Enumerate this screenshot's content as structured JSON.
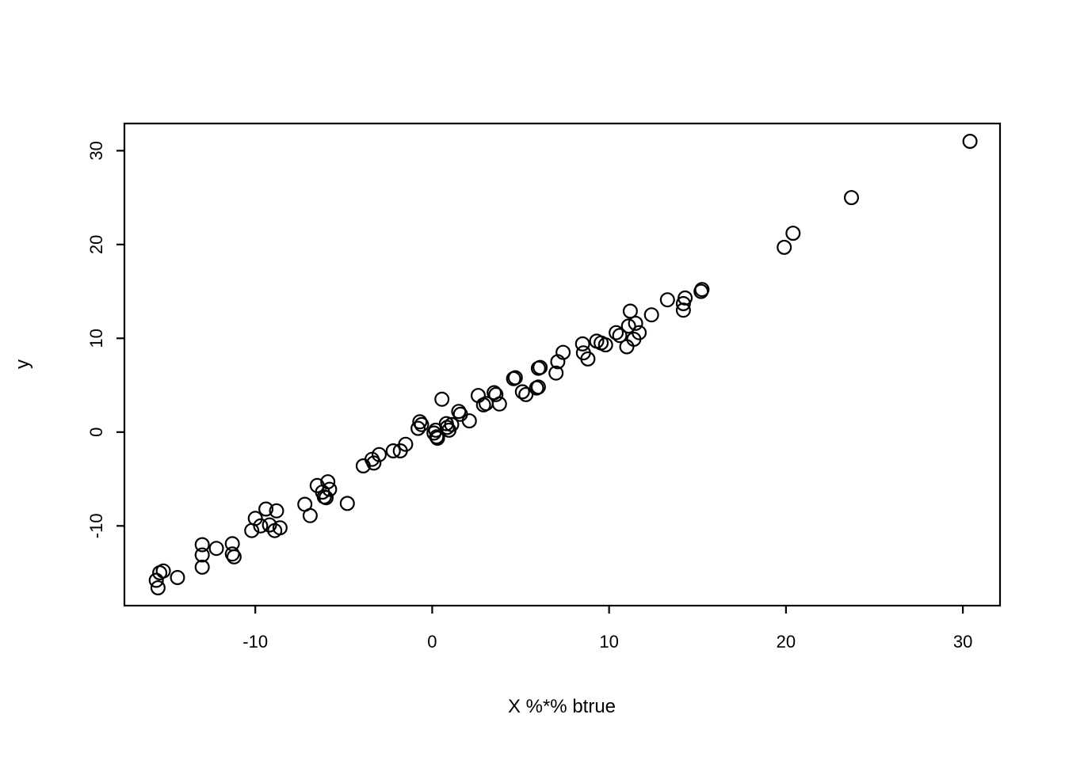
{
  "chart_data": {
    "type": "scatter",
    "title": "",
    "xlabel": "X %*% btrue",
    "ylabel": "y",
    "x_ticks": [
      -10,
      0,
      10,
      20,
      30
    ],
    "y_ticks": [
      -10,
      0,
      10,
      20,
      30
    ],
    "xlim": [
      -17.4,
      32.1
    ],
    "ylim": [
      -18.5,
      32.9
    ],
    "grid": false,
    "legend": null,
    "marker": "open-circle",
    "marker_color": "#000000",
    "background_color": "#ffffff",
    "points": [
      [
        -15.6,
        -15.8
      ],
      [
        -15.5,
        -16.6
      ],
      [
        -15.4,
        -15.0
      ],
      [
        -15.2,
        -14.8
      ],
      [
        -14.4,
        -15.5
      ],
      [
        -13.0,
        -12.0
      ],
      [
        -13.0,
        -13.1
      ],
      [
        -13.0,
        -14.4
      ],
      [
        -12.2,
        -12.4
      ],
      [
        -11.3,
        -11.9
      ],
      [
        -11.3,
        -13.0
      ],
      [
        -11.2,
        -13.3
      ],
      [
        -10.2,
        -10.5
      ],
      [
        -10.0,
        -9.2
      ],
      [
        -9.7,
        -10.0
      ],
      [
        -9.4,
        -8.2
      ],
      [
        -9.2,
        -9.9
      ],
      [
        -8.9,
        -10.5
      ],
      [
        -8.8,
        -8.4
      ],
      [
        -8.6,
        -10.2
      ],
      [
        -7.2,
        -7.7
      ],
      [
        -6.9,
        -8.9
      ],
      [
        -6.5,
        -5.7
      ],
      [
        -6.2,
        -6.4
      ],
      [
        -6.1,
        -6.9
      ],
      [
        -6.0,
        -7.0
      ],
      [
        -5.9,
        -5.3
      ],
      [
        -5.8,
        -6.1
      ],
      [
        -4.8,
        -7.6
      ],
      [
        -3.9,
        -3.6
      ],
      [
        -3.4,
        -2.9
      ],
      [
        -3.3,
        -3.3
      ],
      [
        -3.0,
        -2.4
      ],
      [
        -2.2,
        -2.0
      ],
      [
        -1.8,
        -2.0
      ],
      [
        -1.5,
        -1.3
      ],
      [
        -0.8,
        0.4
      ],
      [
        -0.7,
        1.1
      ],
      [
        -0.6,
        0.8
      ],
      [
        0.1,
        -0.1
      ],
      [
        0.2,
        0.2
      ],
      [
        0.25,
        -0.5
      ],
      [
        0.3,
        -0.65
      ],
      [
        0.55,
        3.5
      ],
      [
        0.8,
        0.9
      ],
      [
        0.85,
        0.5
      ],
      [
        0.95,
        0.2
      ],
      [
        1.1,
        0.8
      ],
      [
        1.5,
        2.2
      ],
      [
        1.6,
        1.9
      ],
      [
        2.1,
        1.2
      ],
      [
        2.6,
        3.9
      ],
      [
        2.9,
        2.9
      ],
      [
        3.05,
        3.05
      ],
      [
        3.5,
        4.2
      ],
      [
        3.6,
        4.0
      ],
      [
        3.8,
        3.0
      ],
      [
        4.6,
        5.7
      ],
      [
        4.7,
        5.8
      ],
      [
        5.1,
        4.3
      ],
      [
        5.3,
        4.0
      ],
      [
        5.9,
        4.7
      ],
      [
        6.0,
        4.8
      ],
      [
        6.0,
        6.8
      ],
      [
        6.1,
        6.9
      ],
      [
        7.0,
        6.3
      ],
      [
        7.1,
        7.5
      ],
      [
        7.4,
        8.5
      ],
      [
        8.5,
        9.4
      ],
      [
        8.55,
        8.45
      ],
      [
        8.8,
        7.8
      ],
      [
        9.3,
        9.7
      ],
      [
        9.55,
        9.5
      ],
      [
        9.8,
        9.3
      ],
      [
        10.4,
        10.6
      ],
      [
        10.6,
        10.3
      ],
      [
        11.1,
        11.3
      ],
      [
        11.5,
        11.6
      ],
      [
        11.7,
        10.6
      ],
      [
        11.4,
        9.9
      ],
      [
        11.0,
        9.1
      ],
      [
        11.2,
        12.9
      ],
      [
        12.4,
        12.5
      ],
      [
        13.3,
        14.1
      ],
      [
        14.2,
        13.7
      ],
      [
        14.3,
        14.3
      ],
      [
        14.2,
        13.0
      ],
      [
        15.2,
        15.0
      ],
      [
        15.25,
        15.2
      ],
      [
        19.9,
        19.7
      ],
      [
        20.4,
        21.2
      ],
      [
        23.7,
        25.0
      ],
      [
        30.4,
        31.0
      ]
    ]
  }
}
